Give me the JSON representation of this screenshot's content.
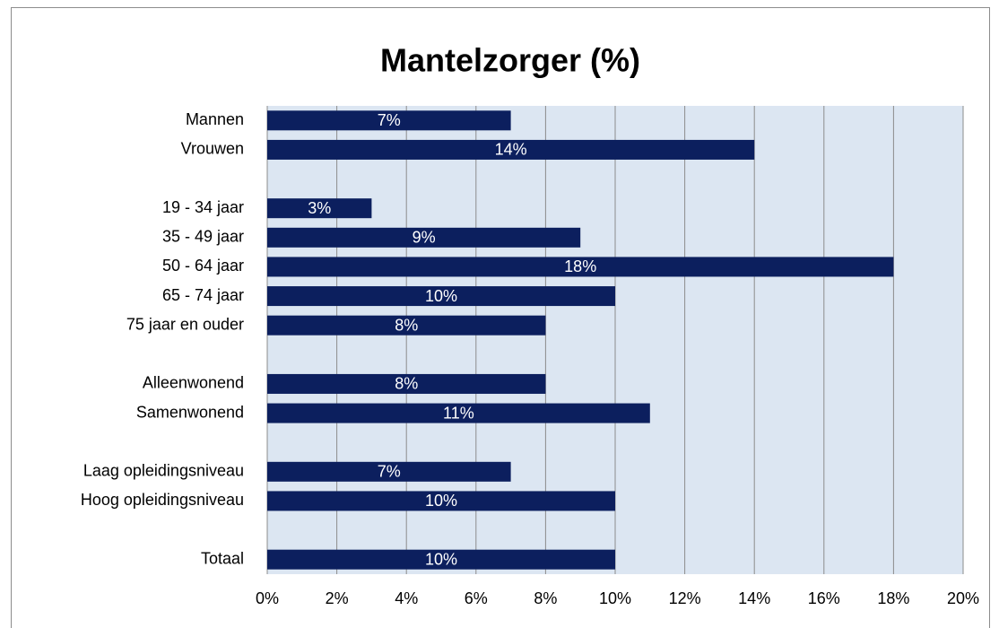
{
  "chart_data": {
    "type": "hbar",
    "title": "Mantelzorger (%)",
    "categories": [
      "Mannen",
      "Vrouwen",
      null,
      "19 - 34 jaar",
      "35 - 49 jaar",
      "50 - 64 jaar",
      "65 - 74 jaar",
      "75 jaar en ouder",
      null,
      "Alleenwonend",
      "Samenwonend",
      null,
      "Laag opleidingsniveau",
      "Hoog opleidingsniveau",
      null,
      "Totaal"
    ],
    "values": [
      7,
      14,
      null,
      3,
      9,
      18,
      10,
      8,
      null,
      8,
      11,
      null,
      7,
      10,
      null,
      10
    ],
    "value_labels": [
      "7%",
      "14%",
      null,
      "3%",
      "9%",
      "18%",
      "10%",
      "8%",
      null,
      "8%",
      "11%",
      null,
      "7%",
      "10%",
      null,
      "10%"
    ],
    "color": "#0c1f5e",
    "xlim": [
      0,
      20
    ],
    "xticks": [
      {
        "value": 0,
        "label": "0%"
      },
      {
        "value": 2,
        "label": "2%"
      },
      {
        "value": 4,
        "label": "4%"
      },
      {
        "value": 6,
        "label": "6%"
      },
      {
        "value": 8,
        "label": "8%"
      },
      {
        "value": 10,
        "label": "10%"
      },
      {
        "value": 12,
        "label": "12%"
      },
      {
        "value": 14,
        "label": "14%"
      },
      {
        "value": 16,
        "label": "16%"
      },
      {
        "value": 18,
        "label": "18%"
      },
      {
        "value": 20,
        "label": "20%"
      }
    ],
    "grid": true
  }
}
